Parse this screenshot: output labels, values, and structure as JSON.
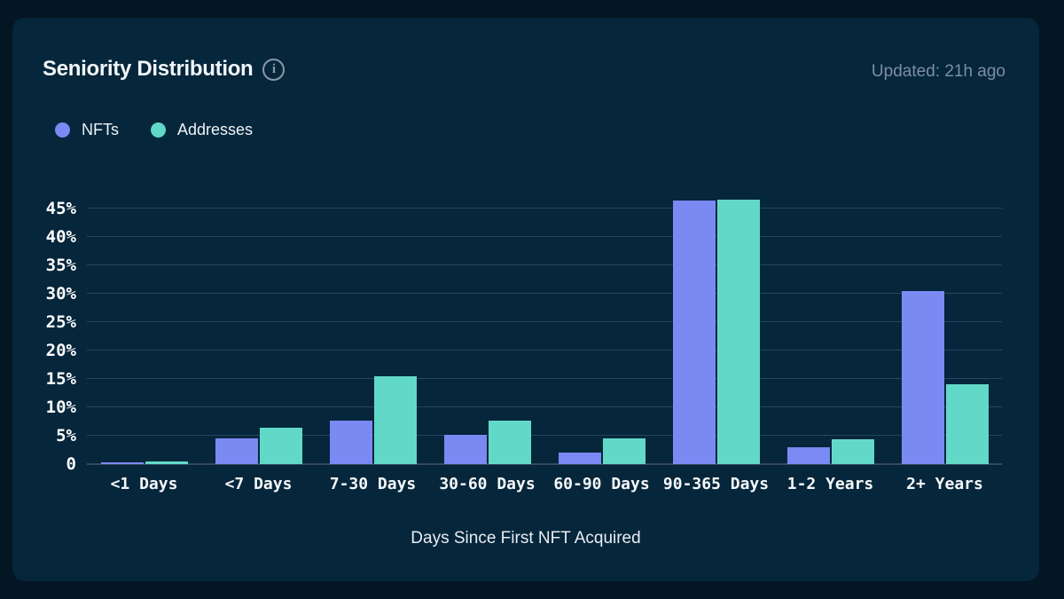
{
  "header": {
    "title": "Seniority Distribution",
    "info_icon": "i",
    "updated": "Updated: 21h ago"
  },
  "legend": [
    {
      "label": "NFTs",
      "color": "#7b89f2"
    },
    {
      "label": "Addresses",
      "color": "#62d9c8"
    }
  ],
  "colors": {
    "page_bg": "#041523",
    "card_bg": "#05263b",
    "gridline": "#24455b",
    "axis_line": "#36495a",
    "nft_bar": "#7b89f2",
    "address_bar": "#62d9c8",
    "tick_text": "#ffffff",
    "muted_text": "#7d8fa2"
  },
  "chart_data": {
    "type": "bar",
    "title": "Seniority Distribution",
    "xlabel": "Days Since First NFT Acquired",
    "ylabel": "",
    "categories": [
      "<1 Days",
      "<7 Days",
      "7-30 Days",
      "30-60 Days",
      "60-90 Days",
      "90-365 Days",
      "1-2 Years",
      "2+ Years"
    ],
    "series": [
      {
        "name": "NFTs",
        "color": "#7b89f2",
        "values": [
          0.3,
          4.6,
          7.7,
          5.1,
          2.1,
          46.4,
          3.0,
          30.4
        ]
      },
      {
        "name": "Addresses",
        "color": "#62d9c8",
        "values": [
          0.5,
          6.4,
          15.5,
          7.7,
          4.5,
          46.6,
          4.3,
          14.0
        ]
      }
    ],
    "ylim": [
      0,
      45
    ],
    "ytick_step": 5,
    "ytick_labels": [
      "0",
      "5%",
      "10%",
      "15%",
      "20%",
      "25%",
      "30%",
      "35%",
      "40%",
      "45%"
    ],
    "grid": "horizontal",
    "legend_position": "top-left"
  }
}
